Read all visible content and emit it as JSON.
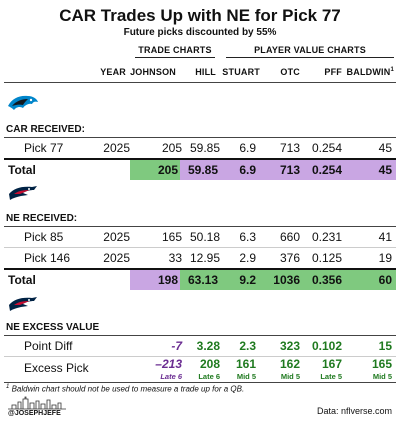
{
  "title": "CAR Trades Up with NE for Pick 77",
  "subtitle": "Future picks discounted by 55%",
  "groups": {
    "trade_charts": "TRADE CHARTS",
    "player_value_charts": "PLAYER VALUE CHARTS"
  },
  "columns": {
    "year": "YEAR",
    "johnson": "JOHNSON",
    "hill": "HILL",
    "stuart": "STUART",
    "otc": "OTC",
    "pff": "PFF",
    "baldwin": "BALDWIN",
    "baldwin_note": "1"
  },
  "car": {
    "section_label": "CAR RECEIVED:",
    "picks": [
      {
        "label": "Pick 77",
        "year": "2025",
        "johnson": "205",
        "hill": "59.85",
        "stuart": "6.9",
        "otc": "713",
        "pff": "0.254",
        "baldwin": "45"
      }
    ],
    "total": {
      "label": "Total",
      "johnson": "205",
      "hill": "59.85",
      "stuart": "6.9",
      "otc": "713",
      "pff": "0.254",
      "baldwin": "45"
    }
  },
  "ne": {
    "section_label": "NE RECEIVED:",
    "picks": [
      {
        "label": "Pick 85",
        "year": "2025",
        "johnson": "165",
        "hill": "50.18",
        "stuart": "6.3",
        "otc": "660",
        "pff": "0.231",
        "baldwin": "41"
      },
      {
        "label": "Pick 146",
        "year": "2025",
        "johnson": "33",
        "hill": "12.95",
        "stuart": "2.9",
        "otc": "376",
        "pff": "0.125",
        "baldwin": "19"
      }
    ],
    "total": {
      "label": "Total",
      "johnson": "198",
      "hill": "63.13",
      "stuart": "9.2",
      "otc": "1036",
      "pff": "0.356",
      "baldwin": "60"
    }
  },
  "excess": {
    "section_label": "NE EXCESS VALUE",
    "point_diff": {
      "label": "Point Diff",
      "johnson": "-7",
      "hill": "3.28",
      "stuart": "2.3",
      "otc": "323",
      "pff": "0.102",
      "baldwin": "15"
    },
    "excess_pick": {
      "label": "Excess Pick",
      "johnson": "–213",
      "johnson_sub": "Late 6",
      "hill": "208",
      "hill_sub": "Late 6",
      "stuart": "161",
      "stuart_sub": "Mid 5",
      "otc": "162",
      "otc_sub": "Mid 5",
      "pff": "167",
      "pff_sub": "Late 5",
      "baldwin": "165",
      "baldwin_sub": "Mid 5"
    }
  },
  "footnote": {
    "marker": "1",
    "text": "Baldwin chart should not be used to measure a trade up for a QB."
  },
  "credit": "@JOSEPHJEFE",
  "data_source": "Data: nflverse.com",
  "colors": {
    "purple": "#c9a6e3",
    "green": "#7fc97f",
    "car_blue": "#0085ca",
    "ne_navy": "#002244",
    "ne_red": "#c60c30"
  },
  "icons": {
    "car_logo": "panthers-logo-icon",
    "ne_logo": "patriots-logo-icon",
    "skyline": "skyline-icon"
  }
}
